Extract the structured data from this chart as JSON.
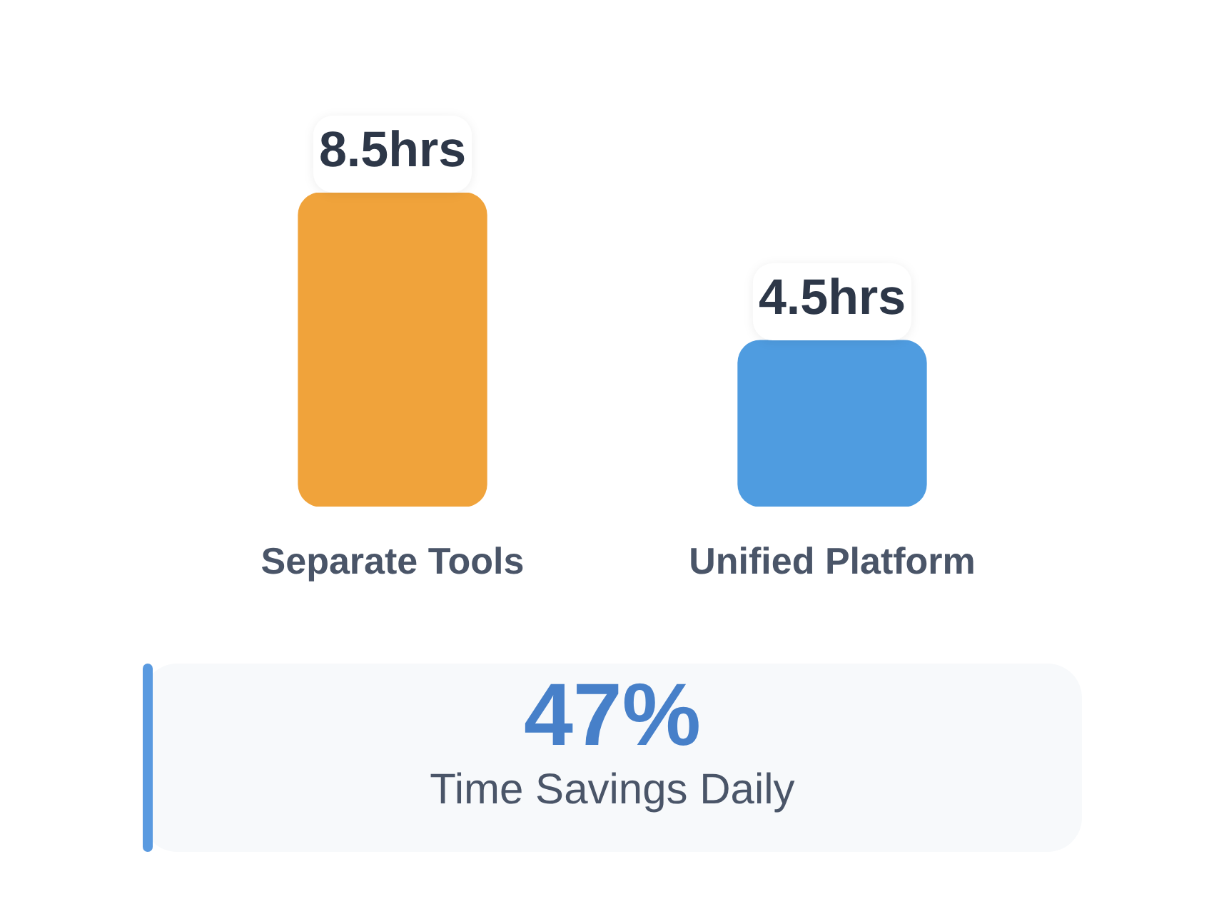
{
  "chart_data": {
    "type": "bar",
    "categories": [
      "Separate Tools",
      "Unified Platform"
    ],
    "values": [
      8.5,
      4.5
    ],
    "colors": [
      "#f0a33b",
      "#4f9ce0"
    ],
    "value_labels": [
      "8.5hrs",
      "4.5hrs"
    ],
    "annotations": [
      "47%",
      "Time Savings Daily"
    ]
  }
}
